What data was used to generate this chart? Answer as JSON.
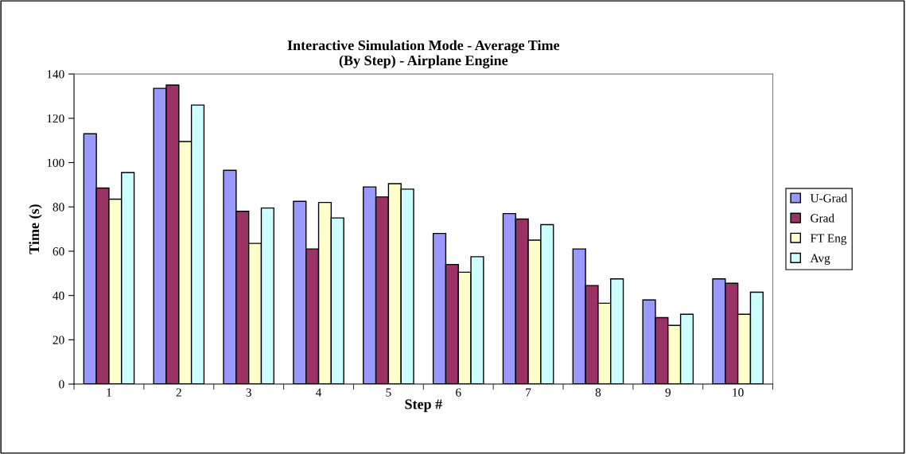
{
  "chart_data": {
    "type": "bar",
    "title": "Interactive Simulation Mode - Average Time\n(By Step) - Airplane Engine",
    "xlabel": "Step #",
    "ylabel": "Time (s)",
    "categories": [
      "1",
      "2",
      "3",
      "4",
      "5",
      "6",
      "7",
      "8",
      "9",
      "10"
    ],
    "series": [
      {
        "name": "U-Grad",
        "color": "#9999ff",
        "values": [
          113,
          133.5,
          96.5,
          82.5,
          89,
          68,
          77,
          61,
          38,
          47.5
        ]
      },
      {
        "name": "Grad",
        "color": "#993366",
        "values": [
          88.5,
          135,
          78,
          61,
          84.5,
          54,
          74.5,
          44.5,
          30,
          45.5
        ]
      },
      {
        "name": "FT Eng",
        "color": "#ffffcc",
        "values": [
          83.5,
          109.5,
          63.5,
          82,
          90.5,
          50.5,
          65,
          36.5,
          26.5,
          31.5
        ]
      },
      {
        "name": "Avg",
        "color": "#ccffff",
        "values": [
          95.5,
          126,
          79.5,
          75,
          88,
          57.5,
          72,
          47.5,
          31.5,
          41.5
        ]
      }
    ],
    "ylim": [
      0,
      140
    ],
    "yticks": [
      0,
      20,
      40,
      60,
      80,
      100,
      120,
      140
    ],
    "grid": false,
    "legend": "right"
  }
}
